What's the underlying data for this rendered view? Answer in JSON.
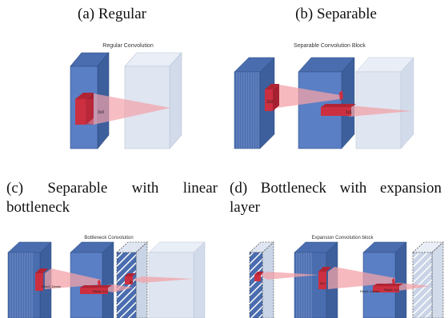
{
  "captions": {
    "a": "(a) Regular",
    "b": "(b) Separable",
    "c": "(c) Separable with linear bottleneck",
    "d": "(d) Bottleneck with expansion layer"
  },
  "panels": {
    "a": {
      "title": "Regular Convolution",
      "kernel_label": "3x3"
    },
    "b": {
      "title": "Separable Convolution Block",
      "depthwise_label": "3x3",
      "pointwise_label": "1x1"
    },
    "c": {
      "title": "Bottleneck Convolution",
      "relu_dense_label": "Relu6, Dense",
      "relu_1x1_label": "Relu6, 1x1",
      "kernel_label": "3x3"
    },
    "d": {
      "title": "Expansion Convolution block",
      "kernel_label": "3x3",
      "relu_dense_label": "Relu6, Dense",
      "relu_1x1_label": "Relu6, 1x1"
    }
  },
  "colors": {
    "tensor_front": "#5b7fc4",
    "tensor_top": "#4a6db0",
    "tensor_side": "#3d5f9c",
    "light_front": "#dfe6f1",
    "light_top": "#eaeff7",
    "light_side": "#d2dbea",
    "kernel": "#cc2f3f",
    "beam": "#f2a1a8"
  }
}
